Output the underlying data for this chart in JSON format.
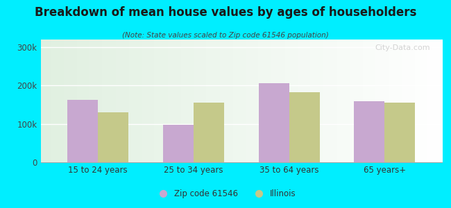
{
  "title": "Breakdown of mean house values by ages of householders",
  "subtitle": "(Note: State values scaled to Zip code 61546 population)",
  "categories": [
    "15 to 24 years",
    "25 to 34 years",
    "35 to 64 years",
    "65 years+"
  ],
  "zip_values": [
    163000,
    98000,
    207000,
    160000
  ],
  "state_values": [
    130000,
    155000,
    183000,
    155000
  ],
  "zip_color": "#c8a8d0",
  "state_color": "#c5c98a",
  "background_color": "#00eeff",
  "ylim": [
    0,
    320000
  ],
  "yticks": [
    0,
    100000,
    200000,
    300000
  ],
  "ytick_labels": [
    "0",
    "100k",
    "200k",
    "300k"
  ],
  "bar_width": 0.32,
  "legend_zip": "Zip code 61546",
  "legend_state": "Illinois",
  "watermark": "City-Data.com"
}
